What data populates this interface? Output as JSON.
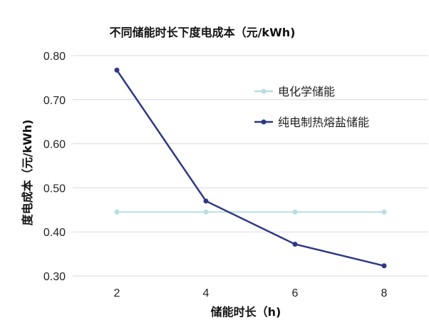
{
  "chart_data": {
    "type": "line",
    "title": "不同储能时长下度电成本（元/kWh)",
    "xlabel": "储能时长（h)",
    "ylabel": "度电成本（元/kWh)",
    "x": [
      2,
      4,
      6,
      8
    ],
    "x_tick_labels": [
      "2",
      "4",
      "6",
      "8"
    ],
    "ylim": [
      0.3,
      0.8
    ],
    "y_ticks": [
      0.3,
      0.4,
      0.5,
      0.6,
      0.7,
      0.8
    ],
    "y_tick_labels": [
      "0.30",
      "0.40",
      "0.50",
      "0.60",
      "0.70",
      "0.80"
    ],
    "grid": true,
    "legend_position": "top-right inside",
    "series": [
      {
        "name": "电化学储能",
        "values": [
          0.445,
          0.445,
          0.445,
          0.445
        ],
        "color": "#b7dfe3"
      },
      {
        "name": "纯电制热熔盐储能",
        "values": [
          0.767,
          0.47,
          0.372,
          0.323
        ],
        "color": "#2e3787"
      }
    ]
  }
}
